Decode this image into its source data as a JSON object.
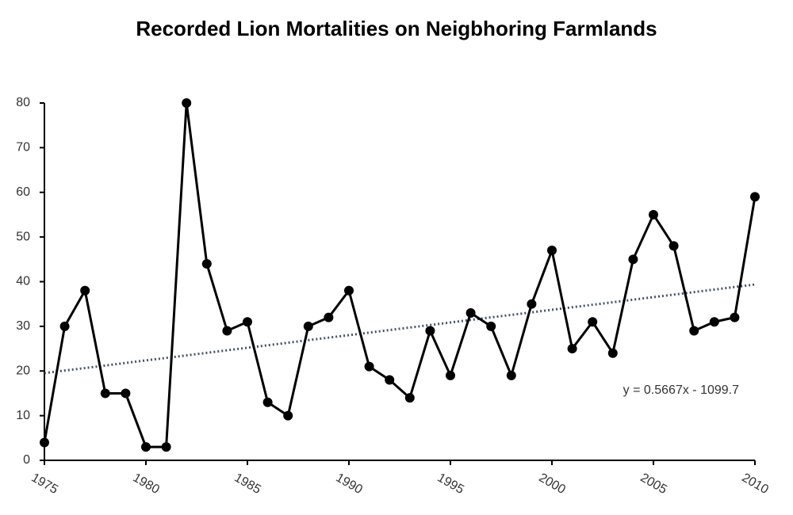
{
  "chart_data": {
    "type": "line",
    "title": "Recorded Lion Mortalities on Neigbhoring Farmlands",
    "x": [
      1975,
      1976,
      1977,
      1978,
      1979,
      1980,
      1981,
      1982,
      1983,
      1984,
      1985,
      1986,
      1987,
      1988,
      1989,
      1990,
      1991,
      1992,
      1993,
      1994,
      1995,
      1996,
      1997,
      1998,
      1999,
      2000,
      2001,
      2002,
      2003,
      2004,
      2005,
      2006,
      2007,
      2008,
      2009,
      2010
    ],
    "values": [
      4,
      30,
      38,
      15,
      15,
      3,
      3,
      80,
      44,
      29,
      31,
      13,
      10,
      30,
      32,
      38,
      21,
      18,
      14,
      29,
      19,
      33,
      30,
      19,
      35,
      47,
      25,
      31,
      24,
      45,
      55,
      48,
      29,
      31,
      32,
      59
    ],
    "color": "#000000",
    "xlim": [
      1975,
      2010
    ],
    "xticks": [
      1975,
      1980,
      1985,
      1990,
      1995,
      2000,
      2005,
      2010
    ],
    "ylim": [
      0,
      80
    ],
    "yticks": [
      0,
      10,
      20,
      30,
      40,
      50,
      60,
      70,
      80
    ],
    "grid": false,
    "trendline": {
      "slope": 0.5667,
      "intercept": -1099.7,
      "label": "y = 0.5667x - 1099.7",
      "color": "#44546a"
    }
  }
}
